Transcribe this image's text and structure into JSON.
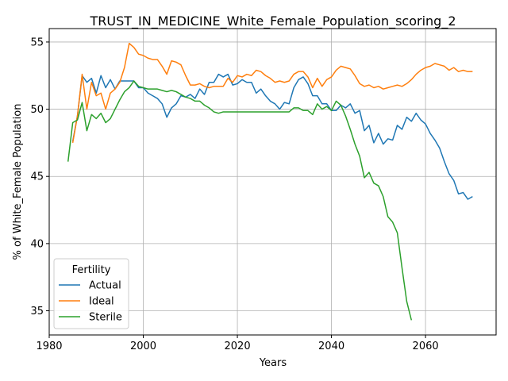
{
  "chart_data": {
    "type": "line",
    "title": "TRUST_IN_MEDICINE_White_Female_Population_scoring_2",
    "xlabel": "Years",
    "ylabel": "% of White_Female Population",
    "xlim": [
      1980,
      2075
    ],
    "ylim": [
      33.2,
      56.0
    ],
    "xticks": [
      1980,
      2000,
      2020,
      2040,
      2060
    ],
    "yticks": [
      35,
      40,
      45,
      50,
      55
    ],
    "grid": true,
    "legend": {
      "title": "Fertility",
      "placement": "lower-left"
    },
    "series": [
      {
        "name": "Actual",
        "color": "#1f77b4",
        "x": [
          1985,
          1986,
          1987,
          1988,
          1989,
          1990,
          1991,
          1992,
          1993,
          1994,
          1995,
          1996,
          1997,
          1998,
          1999,
          2000,
          2001,
          2002,
          2003,
          2004,
          2005,
          2006,
          2007,
          2008,
          2009,
          2010,
          2011,
          2012,
          2013,
          2014,
          2015,
          2016,
          2017,
          2018,
          2019,
          2020,
          2021,
          2022,
          2023,
          2024,
          2025,
          2026,
          2027,
          2028,
          2029,
          2030,
          2031,
          2032,
          2033,
          2034,
          2035,
          2036,
          2037,
          2038,
          2039,
          2040,
          2041,
          2042,
          2043,
          2044,
          2045,
          2046,
          2047,
          2048,
          2049,
          2050,
          2051,
          2052,
          2053,
          2054,
          2055,
          2056,
          2057,
          2058,
          2059,
          2060,
          2061,
          2062,
          2063,
          2064,
          2065,
          2066,
          2067,
          2068,
          2069,
          2070
        ],
        "values": [
          47.6,
          49.5,
          52.5,
          52.0,
          52.3,
          51.2,
          52.5,
          51.6,
          52.2,
          51.5,
          52.1,
          52.1,
          52.1,
          52.1,
          51.6,
          51.6,
          51.2,
          51.0,
          50.8,
          50.4,
          49.4,
          50.1,
          50.4,
          51.0,
          50.9,
          51.1,
          50.8,
          51.5,
          51.1,
          52.0,
          52.0,
          52.6,
          52.4,
          52.6,
          51.8,
          51.9,
          52.2,
          52.0,
          52.0,
          51.2,
          51.5,
          51.0,
          50.6,
          50.4,
          50.0,
          50.5,
          50.4,
          51.6,
          52.2,
          52.4,
          51.9,
          51.0,
          51.0,
          50.4,
          50.4,
          49.9,
          49.9,
          50.3,
          50.1,
          50.4,
          49.7,
          49.9,
          48.4,
          48.8,
          47.5,
          48.2,
          47.4,
          47.8,
          47.7,
          48.8,
          48.5,
          49.4,
          49.1,
          49.7,
          49.2,
          48.9,
          48.2,
          47.7,
          47.1,
          46.1,
          45.2,
          44.7,
          43.7,
          43.8,
          43.3,
          43.5
        ]
      },
      {
        "name": "Ideal",
        "color": "#ff7f0e",
        "x": [
          1985,
          1986,
          1987,
          1988,
          1989,
          1990,
          1991,
          1992,
          1993,
          1994,
          1995,
          1996,
          1997,
          1998,
          1999,
          2000,
          2001,
          2002,
          2003,
          2004,
          2005,
          2006,
          2007,
          2008,
          2009,
          2010,
          2011,
          2012,
          2013,
          2014,
          2015,
          2016,
          2017,
          2018,
          2019,
          2020,
          2021,
          2022,
          2023,
          2024,
          2025,
          2026,
          2027,
          2028,
          2029,
          2030,
          2031,
          2032,
          2033,
          2034,
          2035,
          2036,
          2037,
          2038,
          2039,
          2040,
          2041,
          2042,
          2043,
          2044,
          2045,
          2046,
          2047,
          2048,
          2049,
          2050,
          2051,
          2052,
          2053,
          2054,
          2055,
          2056,
          2057,
          2058,
          2059,
          2060,
          2061,
          2062,
          2063,
          2064,
          2065,
          2066,
          2067,
          2068,
          2069,
          2070
        ],
        "values": [
          47.5,
          49.5,
          52.6,
          50.0,
          52.0,
          51.0,
          51.2,
          50.0,
          51.2,
          51.5,
          52.0,
          53.1,
          54.9,
          54.6,
          54.1,
          54.0,
          53.8,
          53.7,
          53.7,
          53.2,
          52.6,
          53.6,
          53.5,
          53.3,
          52.5,
          51.8,
          51.8,
          51.9,
          51.7,
          51.6,
          51.7,
          51.7,
          51.7,
          52.3,
          52.0,
          52.5,
          52.4,
          52.6,
          52.5,
          52.9,
          52.8,
          52.5,
          52.3,
          52.0,
          52.1,
          52.0,
          52.1,
          52.6,
          52.8,
          52.8,
          52.4,
          51.6,
          52.3,
          51.7,
          52.2,
          52.4,
          52.9,
          53.2,
          53.1,
          53.0,
          52.5,
          51.9,
          51.7,
          51.8,
          51.6,
          51.7,
          51.5,
          51.6,
          51.7,
          51.8,
          51.7,
          51.9,
          52.2,
          52.6,
          52.9,
          53.1,
          53.2,
          53.4,
          53.3,
          53.2,
          52.9,
          53.1,
          52.8,
          52.9,
          52.8,
          52.8
        ]
      },
      {
        "name": "Sterile",
        "color": "#2ca02c",
        "x": [
          1984,
          1985,
          1986,
          1987,
          1988,
          1989,
          1990,
          1991,
          1992,
          1993,
          1994,
          1995,
          1996,
          1997,
          1998,
          1999,
          2000,
          2001,
          2002,
          2003,
          2004,
          2005,
          2006,
          2007,
          2008,
          2009,
          2010,
          2011,
          2012,
          2013,
          2014,
          2015,
          2016,
          2017,
          2018,
          2019,
          2020,
          2021,
          2022,
          2023,
          2024,
          2025,
          2026,
          2027,
          2028,
          2029,
          2030,
          2031,
          2032,
          2033,
          2034,
          2035,
          2036,
          2037,
          2038,
          2039,
          2040,
          2041,
          2042,
          2043,
          2044,
          2045,
          2046,
          2047,
          2048,
          2049,
          2050,
          2051,
          2052,
          2053,
          2054,
          2055,
          2056,
          2057
        ],
        "values": [
          46.1,
          49.0,
          49.2,
          50.5,
          48.4,
          49.6,
          49.3,
          49.7,
          49.0,
          49.3,
          50.0,
          50.7,
          51.3,
          51.6,
          52.1,
          51.7,
          51.6,
          51.5,
          51.5,
          51.5,
          51.4,
          51.3,
          51.4,
          51.3,
          51.1,
          50.9,
          50.8,
          50.6,
          50.6,
          50.3,
          50.1,
          49.8,
          49.7,
          49.8,
          49.8,
          49.8,
          49.8,
          49.8,
          49.8,
          49.8,
          49.8,
          49.8,
          49.8,
          49.8,
          49.8,
          49.8,
          49.8,
          49.8,
          50.1,
          50.1,
          49.9,
          49.9,
          49.6,
          50.4,
          50.0,
          50.2,
          49.9,
          50.6,
          50.3,
          49.5,
          48.5,
          47.4,
          46.5,
          44.9,
          45.3,
          44.5,
          44.3,
          43.5,
          42.0,
          41.6,
          40.8,
          38.2,
          35.7,
          34.3
        ]
      }
    ]
  }
}
